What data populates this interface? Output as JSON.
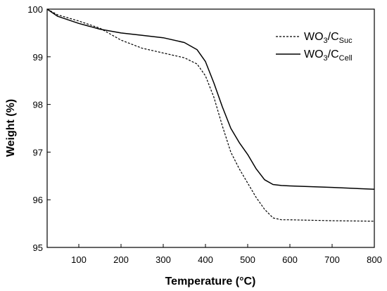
{
  "chart_data": {
    "type": "line",
    "xlabel": "Temperature (°C)",
    "ylabel": "Weight (%)",
    "xlim": [
      25,
      800
    ],
    "ylim": [
      95,
      100
    ],
    "xticks": [
      100,
      200,
      300,
      400,
      500,
      600,
      700,
      800
    ],
    "yticks": [
      95,
      96,
      97,
      98,
      99,
      100
    ],
    "grid": false,
    "legend_position": "top-right",
    "series": [
      {
        "name": "WO3/CSuc",
        "legend": {
          "base": "WO",
          "sub1": "3",
          "mid": "/C",
          "sub2": "Suc"
        },
        "style": "dashed",
        "color": "#000000",
        "x": [
          25,
          50,
          100,
          150,
          200,
          250,
          300,
          350,
          380,
          400,
          420,
          440,
          460,
          480,
          500,
          520,
          540,
          560,
          580,
          600,
          700,
          800
        ],
        "y": [
          100.0,
          99.88,
          99.75,
          99.6,
          99.35,
          99.18,
          99.08,
          98.98,
          98.85,
          98.6,
          98.15,
          97.55,
          97.0,
          96.65,
          96.35,
          96.05,
          95.8,
          95.62,
          95.58,
          95.58,
          95.56,
          95.55
        ]
      },
      {
        "name": "WO3/CCell",
        "legend": {
          "base": "WO",
          "sub1": "3",
          "mid": "/C",
          "sub2": "Cell"
        },
        "style": "solid",
        "color": "#000000",
        "x": [
          25,
          50,
          100,
          150,
          200,
          250,
          300,
          350,
          380,
          400,
          420,
          440,
          460,
          480,
          500,
          520,
          540,
          560,
          580,
          600,
          700,
          800
        ],
        "y": [
          100.0,
          99.85,
          99.7,
          99.58,
          99.5,
          99.45,
          99.4,
          99.3,
          99.15,
          98.9,
          98.45,
          97.95,
          97.5,
          97.2,
          96.95,
          96.65,
          96.42,
          96.32,
          96.3,
          96.29,
          96.26,
          96.22
        ]
      }
    ]
  }
}
